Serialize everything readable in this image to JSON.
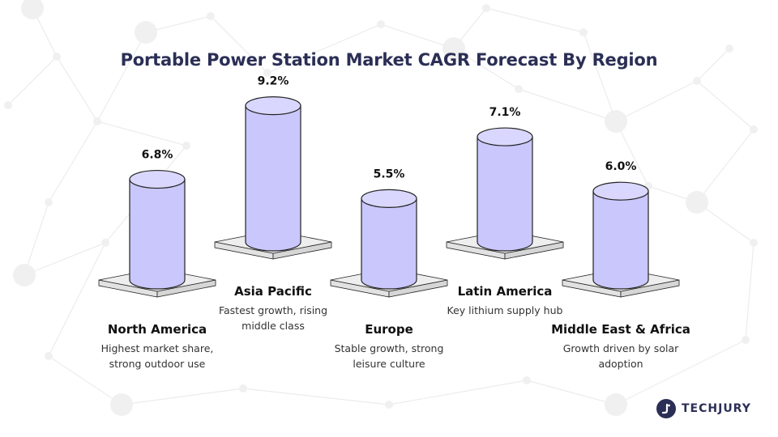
{
  "chart_data": {
    "type": "bar",
    "title": "Portable Power Station Market CAGR Forecast By Region",
    "categories": [
      "North America",
      "Asia Pacific",
      "Europe",
      "Latin America",
      "Middle East & Africa"
    ],
    "values": [
      6.8,
      9.2,
      5.5,
      7.1,
      6.0
    ],
    "value_labels": [
      "6.8%",
      "9.2%",
      "5.5%",
      "7.1%",
      "6.0%"
    ],
    "descriptions": [
      "Highest market share, strong outdoor use",
      "Fastest growth, rising middle class",
      "Stable growth, strong leisure culture",
      "Key lithium supply hub",
      "Growth driven by solar adoption"
    ],
    "unit": "%",
    "xlabel": "",
    "ylabel": "",
    "colors": {
      "cylinder": "#c9c7fb",
      "cylinder_top": "#d9d7fd",
      "base": "#eeeeee",
      "outline": "#222222",
      "title": "#2b2f55"
    }
  },
  "branding": {
    "logo_text": "TECHJURY",
    "logo_icon": "techjury-logo-icon"
  }
}
